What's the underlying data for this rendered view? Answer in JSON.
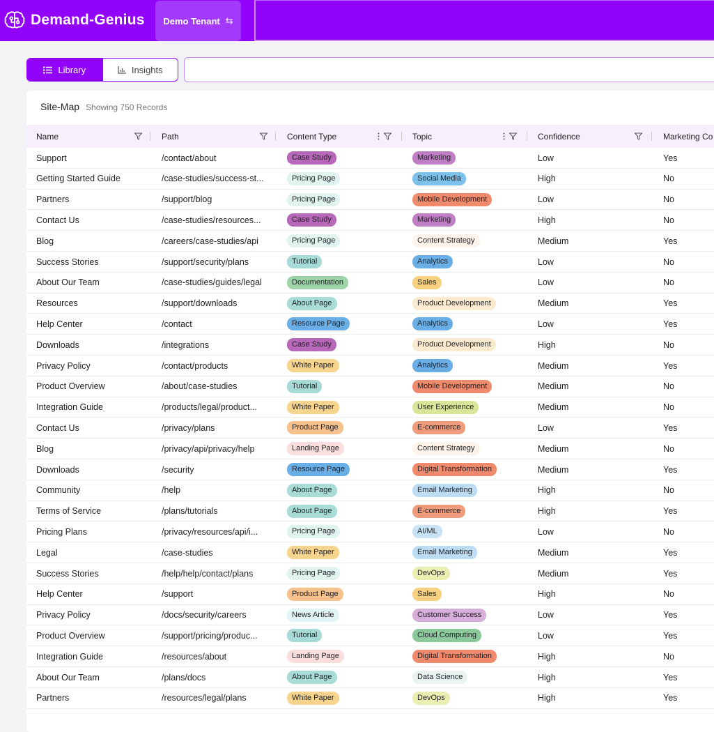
{
  "header": {
    "brand_name": "Demand-Genius",
    "tenant_label": "Demo Tenant",
    "tenant_swap_icon": "⇆"
  },
  "toggle": {
    "library_label": "Library",
    "insights_label": "Insights"
  },
  "search": {
    "placeholder": ""
  },
  "table": {
    "title": "Site-Map",
    "subtitle": "Showing 750 Records",
    "columns": [
      "Name",
      "Path",
      "Content Type",
      "Topic",
      "Confidence",
      "Marketing Co"
    ],
    "rows": [
      {
        "name": "Support",
        "path": "/contact/about",
        "type": "Case Study",
        "topic": "Marketing",
        "conf": "Low",
        "mkt": "Yes"
      },
      {
        "name": "Getting Started Guide",
        "path": "/case-studies/success-st...",
        "type": "Pricing Page",
        "topic": "Social Media",
        "conf": "High",
        "mkt": "No"
      },
      {
        "name": "Partners",
        "path": "/support/blog",
        "type": "Pricing Page",
        "topic": "Mobile Development",
        "conf": "Low",
        "mkt": "No"
      },
      {
        "name": "Contact Us",
        "path": "/case-studies/resources...",
        "type": "Case Study",
        "topic": "Marketing",
        "conf": "High",
        "mkt": "No"
      },
      {
        "name": "Blog",
        "path": "/careers/case-studies/api",
        "type": "Pricing Page",
        "topic": "Content Strategy",
        "conf": "Medium",
        "mkt": "Yes"
      },
      {
        "name": "Success Stories",
        "path": "/support/security/plans",
        "type": "Tutorial",
        "topic": "Analytics",
        "conf": "Low",
        "mkt": "No"
      },
      {
        "name": "About Our Team",
        "path": "/case-studies/guides/legal",
        "type": "Documentation",
        "topic": "Sales",
        "conf": "Low",
        "mkt": "No"
      },
      {
        "name": "Resources",
        "path": "/support/downloads",
        "type": "About Page",
        "topic": "Product Development",
        "conf": "Medium",
        "mkt": "Yes"
      },
      {
        "name": "Help Center",
        "path": "/contact",
        "type": "Resource Page",
        "topic": "Analytics",
        "conf": "Low",
        "mkt": "Yes"
      },
      {
        "name": "Downloads",
        "path": "/integrations",
        "type": "Case Study",
        "topic": "Product Development",
        "conf": "High",
        "mkt": "No"
      },
      {
        "name": "Privacy Policy",
        "path": "/contact/products",
        "type": "White Paper",
        "topic": "Analytics",
        "conf": "Medium",
        "mkt": "Yes"
      },
      {
        "name": "Product Overview",
        "path": "/about/case-studies",
        "type": "Tutorial",
        "topic": "Mobile Development",
        "conf": "Medium",
        "mkt": "No"
      },
      {
        "name": "Integration Guide",
        "path": "/products/legal/product...",
        "type": "White Paper",
        "topic": "User Experience",
        "conf": "Medium",
        "mkt": "No"
      },
      {
        "name": "Contact Us",
        "path": "/privacy/plans",
        "type": "Product Page",
        "topic": "E-commerce",
        "conf": "Low",
        "mkt": "Yes"
      },
      {
        "name": "Blog",
        "path": "/privacy/api/privacy/help",
        "type": "Landing Page",
        "topic": "Content Strategy",
        "conf": "Medium",
        "mkt": "No"
      },
      {
        "name": "Downloads",
        "path": "/security",
        "type": "Resource Page",
        "topic": "Digital Transformation",
        "conf": "Medium",
        "mkt": "Yes"
      },
      {
        "name": "Community",
        "path": "/help",
        "type": "About Page",
        "topic": "Email Marketing",
        "conf": "High",
        "mkt": "No"
      },
      {
        "name": "Terms of Service",
        "path": "/plans/tutorials",
        "type": "About Page",
        "topic": "E-commerce",
        "conf": "High",
        "mkt": "Yes"
      },
      {
        "name": "Pricing Plans",
        "path": "/privacy/resources/api/i...",
        "type": "Pricing Page",
        "topic": "AI/ML",
        "conf": "Low",
        "mkt": "No"
      },
      {
        "name": "Legal",
        "path": "/case-studies",
        "type": "White Paper",
        "topic": "Email Marketing",
        "conf": "Medium",
        "mkt": "Yes"
      },
      {
        "name": "Success Stories",
        "path": "/help/help/contact/plans",
        "type": "Pricing Page",
        "topic": "DevOps",
        "conf": "Medium",
        "mkt": "Yes"
      },
      {
        "name": "Help Center",
        "path": "/support",
        "type": "Product Page",
        "topic": "Sales",
        "conf": "High",
        "mkt": "No"
      },
      {
        "name": "Privacy Policy",
        "path": "/docs/security/careers",
        "type": "News Article",
        "topic": "Customer Success",
        "conf": "Low",
        "mkt": "Yes"
      },
      {
        "name": "Product Overview",
        "path": "/support/pricing/produc...",
        "type": "Tutorial",
        "topic": "Cloud Computing",
        "conf": "Low",
        "mkt": "Yes"
      },
      {
        "name": "Integration Guide",
        "path": "/resources/about",
        "type": "Landing Page",
        "topic": "Digital Transformation",
        "conf": "High",
        "mkt": "No"
      },
      {
        "name": "About Our Team",
        "path": "/plans/docs",
        "type": "About Page",
        "topic": "Data Science",
        "conf": "High",
        "mkt": "Yes"
      },
      {
        "name": "Partners",
        "path": "/resources/legal/plans",
        "type": "White Paper",
        "topic": "DevOps",
        "conf": "High",
        "mkt": "Yes"
      }
    ]
  },
  "pill_colors": {
    "Case Study": "#b768b8",
    "Pricing Page": "#e0f3ee",
    "Tutorial": "#a6dad6",
    "Documentation": "#9dd3a7",
    "About Page": "#a9dcd7",
    "Resource Page": "#6aaee6",
    "White Paper": "#f7d48d",
    "Product Page": "#f6c18c",
    "Landing Page": "#fadedd",
    "News Article": "#e2f4f3",
    "Marketing": "#c07ec4",
    "Social Media": "#7cc1ea",
    "Mobile Development": "#f08a6d",
    "Content Strategy": "#fdf3ea",
    "Analytics": "#6aaee6",
    "Sales": "#f7d17f",
    "Product Development": "#faead0",
    "User Experience": "#dbe59a",
    "E-commerce": "#f09b7b",
    "Digital Transformation": "#f08a6d",
    "Email Marketing": "#bcdcf4",
    "AI/ML": "#c8e2f6",
    "DevOps": "#ebeeb1",
    "Customer Success": "#d6aed9",
    "Cloud Computing": "#8bc99a",
    "Data Science": "#e9f3f2"
  },
  "colors": {
    "brand": "#9104f9",
    "header_hover": "#a33afb",
    "table_header_bg": "#f8effe"
  }
}
